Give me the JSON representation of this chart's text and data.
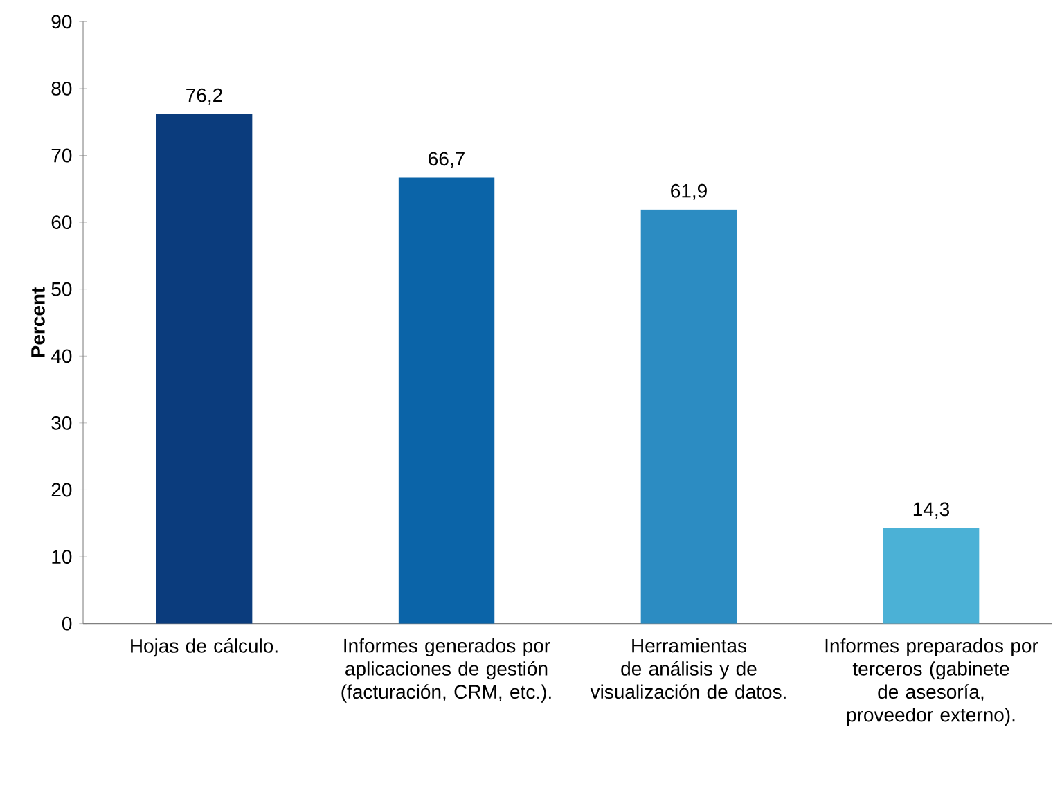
{
  "chart_data": {
    "type": "bar",
    "ylabel": "Percent",
    "categories": [
      "Hojas de cálculo.",
      "Informes generados por aplicaciones de gestión (facturación, CRM, etc.).",
      "Herramientas de análisis y de visualización de datos.",
      "Informes preparados por terceros (gabinete de asesoría, proveedor externo)."
    ],
    "values": [
      76.2,
      66.7,
      61.9,
      14.3
    ],
    "value_labels": [
      "76,2",
      "66,7",
      "61,9",
      "14,3"
    ],
    "colors": [
      "#0b3c7d",
      "#0b64a8",
      "#2c8cc2",
      "#4bb1d6"
    ],
    "ylim": [
      0,
      90
    ],
    "yticks": [
      0,
      10,
      20,
      30,
      40,
      50,
      60,
      70,
      80,
      90
    ],
    "grid": false
  }
}
